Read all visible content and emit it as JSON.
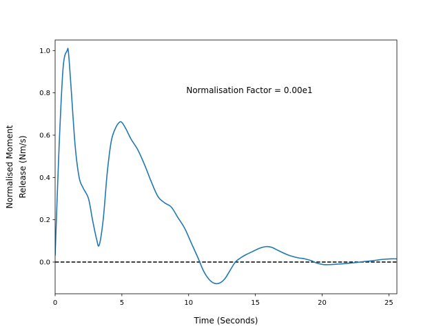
{
  "chart_data": {
    "type": "line",
    "title": "",
    "xlabel": "Time (Seconds)",
    "ylabel_lines": [
      "Normalised Moment",
      "Release (Nm/s)"
    ],
    "xlim": [
      0,
      25.6
    ],
    "ylim": [
      -0.15,
      1.05
    ],
    "xticks": [
      0,
      5,
      10,
      15,
      20,
      25
    ],
    "yticks": [
      0.0,
      0.2,
      0.4,
      0.6,
      0.8,
      1.0
    ],
    "annotation": "Normalisation Factor = 0.00e1",
    "grid": false,
    "reference_line": {
      "y": 0.0,
      "style": "dashed",
      "color": "#000000"
    },
    "series": [
      {
        "color": "#1f77b4",
        "x": [
          0,
          0.3,
          0.6,
          0.9,
          1.0,
          1.2,
          1.5,
          1.8,
          2.1,
          2.5,
          2.8,
          3.1,
          3.3,
          3.6,
          3.9,
          4.2,
          4.5,
          4.8,
          5.0,
          5.3,
          5.7,
          6.2,
          6.7,
          7.2,
          7.7,
          8.2,
          8.7,
          9.2,
          9.7,
          10.2,
          10.7,
          11.1,
          11.5,
          11.9,
          12.3,
          12.7,
          13.1,
          13.5,
          13.9,
          14.3,
          14.8,
          15.3,
          15.8,
          16.2,
          16.7,
          17.2,
          17.7,
          18.2,
          18.7,
          19.2,
          19.6,
          20.1,
          20.6,
          21.1,
          21.6,
          22.1,
          22.6,
          23.1,
          23.6,
          24.1,
          24.6,
          25.1,
          25.6
        ],
        "y": [
          0.03,
          0.55,
          0.92,
          1.0,
          0.99,
          0.82,
          0.55,
          0.4,
          0.35,
          0.3,
          0.2,
          0.11,
          0.08,
          0.2,
          0.42,
          0.57,
          0.63,
          0.66,
          0.66,
          0.63,
          0.58,
          0.53,
          0.46,
          0.38,
          0.31,
          0.28,
          0.26,
          0.21,
          0.16,
          0.09,
          0.02,
          -0.04,
          -0.08,
          -0.1,
          -0.1,
          -0.08,
          -0.04,
          0.0,
          0.02,
          0.035,
          0.05,
          0.065,
          0.073,
          0.07,
          0.055,
          0.04,
          0.028,
          0.02,
          0.015,
          0.006,
          -0.005,
          -0.012,
          -0.012,
          -0.01,
          -0.008,
          -0.005,
          -0.002,
          0.002,
          0.005,
          0.009,
          0.013,
          0.015,
          0.015
        ]
      }
    ]
  }
}
